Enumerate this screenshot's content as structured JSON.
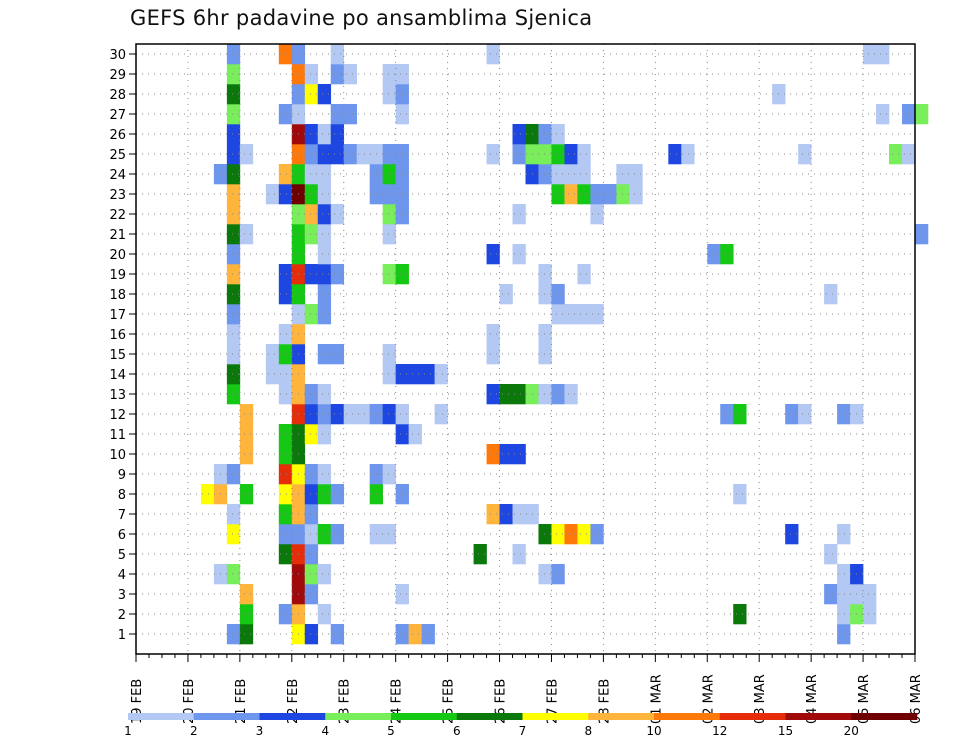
{
  "chart_data": {
    "type": "heatmap",
    "title": "GEFS 6hr padavine po ansamblima Sjenica",
    "members": [
      1,
      2,
      3,
      4,
      5,
      6,
      7,
      8,
      9,
      10,
      11,
      12,
      13,
      14,
      15,
      16,
      17,
      18,
      19,
      20,
      21,
      22,
      23,
      24,
      25,
      26,
      27,
      28,
      29,
      30
    ],
    "x_ticks": [
      "19 FEB",
      "20 FEB",
      "21 FEB",
      "22 FEB",
      "23 FEB",
      "24 FEB",
      "25 FEB",
      "26 FEB",
      "27 FEB",
      "28 FEB",
      "01 MAR",
      "02 MAR",
      "03 MAR",
      "04 MAR",
      "05 MAR",
      "06 MAR"
    ],
    "time_steps_per_day": 4,
    "n_steps": 61,
    "grid": true,
    "legend": {
      "placement": "bottom",
      "labels": [
        "1",
        "2",
        "3",
        "4",
        "5",
        "6",
        "7",
        "8",
        "10",
        "12",
        "15",
        "20"
      ],
      "colors": [
        "#b4c8f4",
        "#6e96ec",
        "#1e46e1",
        "#78ee5a",
        "#14c814",
        "#0a780a",
        "#ffff00",
        "#ffb43c",
        "#ff780a",
        "#e62d0a",
        "#a00a0a",
        "#6e0000"
      ]
    },
    "cells": [
      [
        1,
        8,
        2
      ],
      [
        1,
        9,
        6
      ],
      [
        1,
        13,
        7
      ],
      [
        1,
        14,
        3
      ],
      [
        1,
        16,
        2
      ],
      [
        1,
        21,
        2
      ],
      [
        1,
        22,
        8
      ],
      [
        1,
        23,
        2
      ],
      [
        1,
        55,
        2
      ],
      [
        2,
        9,
        5
      ],
      [
        2,
        12,
        2
      ],
      [
        2,
        13,
        8
      ],
      [
        2,
        15,
        1
      ],
      [
        2,
        47,
        6
      ],
      [
        2,
        55,
        1
      ],
      [
        2,
        56,
        4
      ],
      [
        2,
        57,
        1
      ],
      [
        3,
        9,
        8
      ],
      [
        3,
        13,
        11
      ],
      [
        3,
        14,
        2
      ],
      [
        3,
        21,
        1
      ],
      [
        3,
        54,
        2
      ],
      [
        3,
        55,
        1
      ],
      [
        3,
        56,
        1
      ],
      [
        3,
        57,
        1
      ],
      [
        4,
        7,
        1
      ],
      [
        4,
        8,
        4
      ],
      [
        4,
        13,
        11
      ],
      [
        4,
        14,
        4
      ],
      [
        4,
        15,
        1
      ],
      [
        4,
        32,
        1
      ],
      [
        4,
        33,
        2
      ],
      [
        4,
        55,
        1
      ],
      [
        4,
        56,
        3
      ],
      [
        5,
        12,
        6
      ],
      [
        5,
        13,
        10
      ],
      [
        5,
        14,
        2
      ],
      [
        5,
        27,
        6
      ],
      [
        5,
        30,
        1
      ],
      [
        5,
        54,
        1
      ],
      [
        6,
        8,
        7
      ],
      [
        6,
        12,
        2
      ],
      [
        6,
        13,
        2
      ],
      [
        6,
        14,
        1
      ],
      [
        6,
        15,
        5
      ],
      [
        6,
        16,
        2
      ],
      [
        6,
        19,
        1
      ],
      [
        6,
        20,
        1
      ],
      [
        6,
        32,
        6
      ],
      [
        6,
        33,
        7
      ],
      [
        6,
        34,
        9
      ],
      [
        6,
        35,
        7
      ],
      [
        6,
        36,
        2
      ],
      [
        6,
        51,
        3
      ],
      [
        6,
        55,
        1
      ],
      [
        7,
        8,
        1
      ],
      [
        7,
        12,
        5
      ],
      [
        7,
        13,
        8
      ],
      [
        7,
        14,
        2
      ],
      [
        7,
        28,
        8
      ],
      [
        7,
        29,
        3
      ],
      [
        7,
        30,
        1
      ],
      [
        7,
        31,
        1
      ],
      [
        8,
        6,
        7
      ],
      [
        8,
        7,
        8
      ],
      [
        8,
        9,
        5
      ],
      [
        8,
        12,
        7
      ],
      [
        8,
        13,
        8
      ],
      [
        8,
        14,
        3
      ],
      [
        8,
        15,
        5
      ],
      [
        8,
        16,
        2
      ],
      [
        8,
        19,
        5
      ],
      [
        8,
        21,
        2
      ],
      [
        8,
        47,
        1
      ],
      [
        9,
        7,
        1
      ],
      [
        9,
        8,
        2
      ],
      [
        9,
        12,
        10
      ],
      [
        9,
        13,
        7
      ],
      [
        9,
        14,
        2
      ],
      [
        9,
        15,
        1
      ],
      [
        9,
        19,
        2
      ],
      [
        9,
        20,
        1
      ],
      [
        10,
        9,
        8
      ],
      [
        10,
        12,
        5
      ],
      [
        10,
        13,
        6
      ],
      [
        10,
        28,
        9
      ],
      [
        10,
        29,
        3
      ],
      [
        10,
        30,
        3
      ],
      [
        11,
        9,
        8
      ],
      [
        11,
        12,
        5
      ],
      [
        11,
        13,
        6
      ],
      [
        11,
        14,
        7
      ],
      [
        11,
        15,
        1
      ],
      [
        11,
        21,
        3
      ],
      [
        11,
        22,
        1
      ],
      [
        12,
        9,
        8
      ],
      [
        12,
        13,
        10
      ],
      [
        12,
        14,
        3
      ],
      [
        12,
        15,
        2
      ],
      [
        12,
        16,
        3
      ],
      [
        12,
        17,
        1
      ],
      [
        12,
        18,
        1
      ],
      [
        12,
        19,
        2
      ],
      [
        12,
        20,
        3
      ],
      [
        12,
        21,
        1
      ],
      [
        12,
        24,
        1
      ],
      [
        12,
        46,
        2
      ],
      [
        12,
        47,
        5
      ],
      [
        12,
        51,
        2
      ],
      [
        12,
        52,
        1
      ],
      [
        12,
        55,
        2
      ],
      [
        12,
        56,
        1
      ],
      [
        13,
        8,
        5
      ],
      [
        13,
        12,
        1
      ],
      [
        13,
        13,
        8
      ],
      [
        13,
        14,
        2
      ],
      [
        13,
        15,
        1
      ],
      [
        13,
        28,
        3
      ],
      [
        13,
        29,
        6
      ],
      [
        13,
        30,
        6
      ],
      [
        13,
        31,
        4
      ],
      [
        13,
        32,
        1
      ],
      [
        13,
        33,
        2
      ],
      [
        13,
        34,
        1
      ],
      [
        14,
        8,
        6
      ],
      [
        14,
        11,
        1
      ],
      [
        14,
        12,
        1
      ],
      [
        14,
        13,
        8
      ],
      [
        14,
        20,
        1
      ],
      [
        14,
        21,
        3
      ],
      [
        14,
        22,
        3
      ],
      [
        14,
        23,
        3
      ],
      [
        14,
        24,
        1
      ],
      [
        15,
        8,
        1
      ],
      [
        15,
        11,
        1
      ],
      [
        15,
        12,
        5
      ],
      [
        15,
        13,
        3
      ],
      [
        15,
        15,
        2
      ],
      [
        15,
        16,
        2
      ],
      [
        15,
        20,
        1
      ],
      [
        15,
        28,
        1
      ],
      [
        15,
        32,
        1
      ],
      [
        16,
        8,
        1
      ],
      [
        16,
        12,
        1
      ],
      [
        16,
        13,
        8
      ],
      [
        16,
        28,
        1
      ],
      [
        16,
        32,
        1
      ],
      [
        17,
        8,
        2
      ],
      [
        17,
        13,
        1
      ],
      [
        17,
        14,
        4
      ],
      [
        17,
        15,
        2
      ],
      [
        17,
        33,
        1
      ],
      [
        17,
        34,
        1
      ],
      [
        17,
        35,
        1
      ],
      [
        17,
        36,
        1
      ],
      [
        18,
        8,
        6
      ],
      [
        18,
        12,
        3
      ],
      [
        18,
        13,
        5
      ],
      [
        18,
        15,
        2
      ],
      [
        18,
        29,
        1
      ],
      [
        18,
        32,
        1
      ],
      [
        18,
        33,
        2
      ],
      [
        18,
        54,
        1
      ],
      [
        19,
        8,
        8
      ],
      [
        19,
        12,
        3
      ],
      [
        19,
        13,
        10
      ],
      [
        19,
        14,
        3
      ],
      [
        19,
        15,
        3
      ],
      [
        19,
        16,
        2
      ],
      [
        19,
        20,
        4
      ],
      [
        19,
        21,
        5
      ],
      [
        19,
        32,
        1
      ],
      [
        19,
        35,
        1
      ],
      [
        20,
        8,
        2
      ],
      [
        20,
        13,
        5
      ],
      [
        20,
        15,
        1
      ],
      [
        20,
        28,
        3
      ],
      [
        20,
        30,
        1
      ],
      [
        20,
        45,
        2
      ],
      [
        20,
        46,
        5
      ],
      [
        21,
        8,
        6
      ],
      [
        21,
        9,
        1
      ],
      [
        21,
        13,
        5
      ],
      [
        21,
        14,
        4
      ],
      [
        21,
        15,
        1
      ],
      [
        21,
        20,
        1
      ],
      [
        21,
        61,
        2
      ],
      [
        22,
        8,
        8
      ],
      [
        22,
        13,
        4
      ],
      [
        22,
        14,
        8
      ],
      [
        22,
        15,
        3
      ],
      [
        22,
        16,
        1
      ],
      [
        22,
        20,
        4
      ],
      [
        22,
        21,
        2
      ],
      [
        22,
        30,
        1
      ],
      [
        22,
        36,
        1
      ],
      [
        23,
        8,
        8
      ],
      [
        23,
        11,
        1
      ],
      [
        23,
        12,
        3
      ],
      [
        23,
        13,
        12
      ],
      [
        23,
        14,
        5
      ],
      [
        23,
        15,
        1
      ],
      [
        23,
        19,
        2
      ],
      [
        23,
        20,
        2
      ],
      [
        23,
        21,
        2
      ],
      [
        23,
        33,
        5
      ],
      [
        23,
        34,
        8
      ],
      [
        23,
        35,
        5
      ],
      [
        23,
        36,
        2
      ],
      [
        23,
        37,
        2
      ],
      [
        23,
        38,
        4
      ],
      [
        23,
        39,
        1
      ],
      [
        24,
        7,
        2
      ],
      [
        24,
        8,
        6
      ],
      [
        24,
        12,
        8
      ],
      [
        24,
        13,
        5
      ],
      [
        24,
        14,
        1
      ],
      [
        24,
        15,
        1
      ],
      [
        24,
        19,
        2
      ],
      [
        24,
        20,
        5
      ],
      [
        24,
        21,
        2
      ],
      [
        24,
        31,
        3
      ],
      [
        24,
        32,
        2
      ],
      [
        24,
        33,
        1
      ],
      [
        24,
        34,
        1
      ],
      [
        24,
        35,
        1
      ],
      [
        24,
        38,
        1
      ],
      [
        24,
        39,
        1
      ],
      [
        25,
        8,
        3
      ],
      [
        25,
        9,
        1
      ],
      [
        25,
        13,
        9
      ],
      [
        25,
        14,
        2
      ],
      [
        25,
        15,
        3
      ],
      [
        25,
        16,
        3
      ],
      [
        25,
        17,
        2
      ],
      [
        25,
        18,
        1
      ],
      [
        25,
        19,
        1
      ],
      [
        25,
        20,
        2
      ],
      [
        25,
        21,
        2
      ],
      [
        25,
        28,
        1
      ],
      [
        25,
        30,
        2
      ],
      [
        25,
        31,
        4
      ],
      [
        25,
        32,
        4
      ],
      [
        25,
        33,
        5
      ],
      [
        25,
        34,
        3
      ],
      [
        25,
        35,
        1
      ],
      [
        25,
        42,
        3
      ],
      [
        25,
        43,
        1
      ],
      [
        25,
        52,
        1
      ],
      [
        25,
        59,
        4
      ],
      [
        25,
        60,
        1
      ],
      [
        26,
        8,
        3
      ],
      [
        26,
        13,
        11
      ],
      [
        26,
        14,
        3
      ],
      [
        26,
        15,
        1
      ],
      [
        26,
        16,
        3
      ],
      [
        26,
        30,
        3
      ],
      [
        26,
        31,
        6
      ],
      [
        26,
        32,
        2
      ],
      [
        26,
        33,
        1
      ],
      [
        27,
        8,
        4
      ],
      [
        27,
        12,
        2
      ],
      [
        27,
        13,
        1
      ],
      [
        27,
        16,
        2
      ],
      [
        27,
        17,
        2
      ],
      [
        27,
        21,
        1
      ],
      [
        27,
        58,
        1
      ],
      [
        27,
        60,
        2
      ],
      [
        27,
        61,
        4
      ],
      [
        28,
        8,
        6
      ],
      [
        28,
        13,
        2
      ],
      [
        28,
        14,
        7
      ],
      [
        28,
        15,
        3
      ],
      [
        28,
        20,
        1
      ],
      [
        28,
        21,
        2
      ],
      [
        28,
        50,
        1
      ],
      [
        29,
        8,
        4
      ],
      [
        29,
        13,
        9
      ],
      [
        29,
        14,
        1
      ],
      [
        29,
        16,
        2
      ],
      [
        29,
        17,
        1
      ],
      [
        29,
        20,
        1
      ],
      [
        29,
        21,
        1
      ],
      [
        30,
        8,
        2
      ],
      [
        30,
        12,
        9
      ],
      [
        30,
        13,
        2
      ],
      [
        30,
        16,
        1
      ],
      [
        30,
        28,
        1
      ],
      [
        30,
        57,
        1
      ],
      [
        30,
        58,
        1
      ]
    ]
  }
}
